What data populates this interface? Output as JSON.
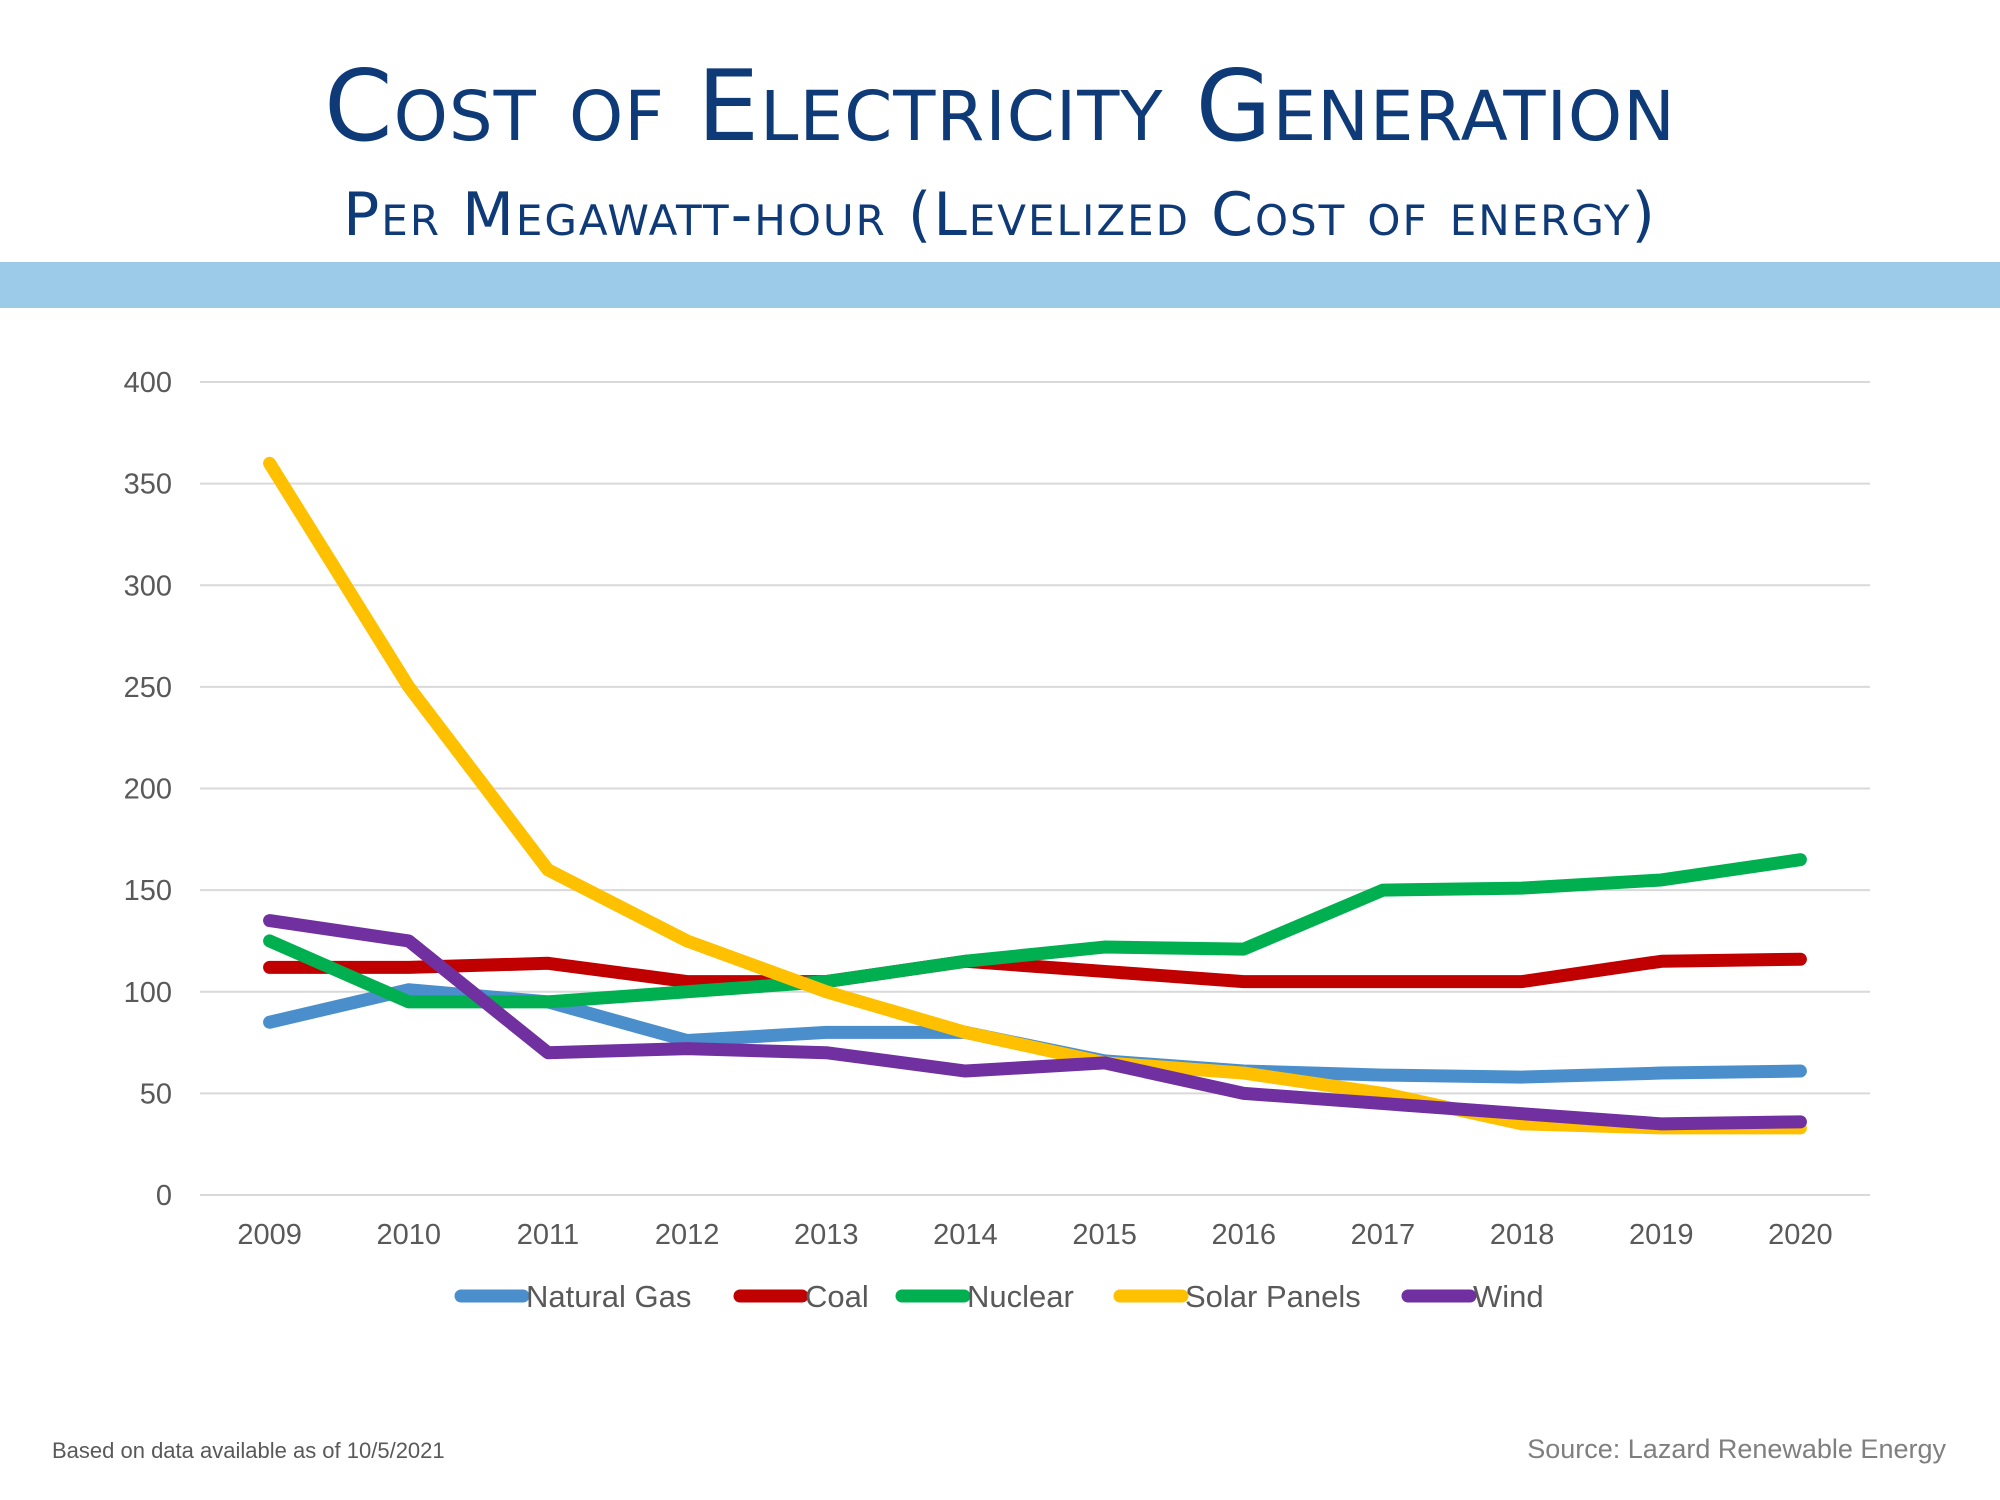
{
  "header": {
    "title": "Cost of Electricity Generation",
    "subtitle": "Per Megawatt-hour (Levelized Cost of energy)"
  },
  "footer": {
    "note": "Based on data available as of 10/5/2021",
    "source": "Source:  Lazard Renewable Energy"
  },
  "colors": {
    "title": "#0f3a78",
    "band": "#9ccbea",
    "grid": "#d9d9d9",
    "tick_text": "#595959"
  },
  "chart_data": {
    "type": "line",
    "title": "",
    "xlabel": "",
    "ylabel": "",
    "x": [
      "2009",
      "2010",
      "2011",
      "2012",
      "2013",
      "2014",
      "2015",
      "2016",
      "2017",
      "2018",
      "2019",
      "2020"
    ],
    "ylim": [
      0,
      400
    ],
    "yticks": [
      0,
      50,
      100,
      150,
      200,
      250,
      300,
      350,
      400
    ],
    "grid": true,
    "legend_position": "bottom",
    "series": [
      {
        "name": "Natural Gas",
        "color": "#4a8fcc",
        "values": [
          85,
          101,
          95,
          76,
          80,
          80,
          66,
          61,
          59,
          58,
          60,
          61
        ]
      },
      {
        "name": "Coal",
        "color": "#c00000",
        "values": [
          112,
          112,
          114,
          105,
          105,
          115,
          110,
          105,
          105,
          105,
          115,
          116
        ]
      },
      {
        "name": "Nuclear",
        "color": "#00b050",
        "values": [
          125,
          95,
          95,
          100,
          105,
          115,
          122,
          121,
          150,
          151,
          155,
          165
        ]
      },
      {
        "name": "Solar Panels",
        "color": "#ffc000",
        "values": [
          360,
          250,
          160,
          125,
          100,
          80,
          65,
          60,
          50,
          35,
          33,
          33
        ]
      },
      {
        "name": "Wind",
        "color": "#7030a0",
        "values": [
          135,
          125,
          70,
          72,
          70,
          61,
          65,
          50,
          45,
          40,
          35,
          36
        ]
      }
    ]
  }
}
